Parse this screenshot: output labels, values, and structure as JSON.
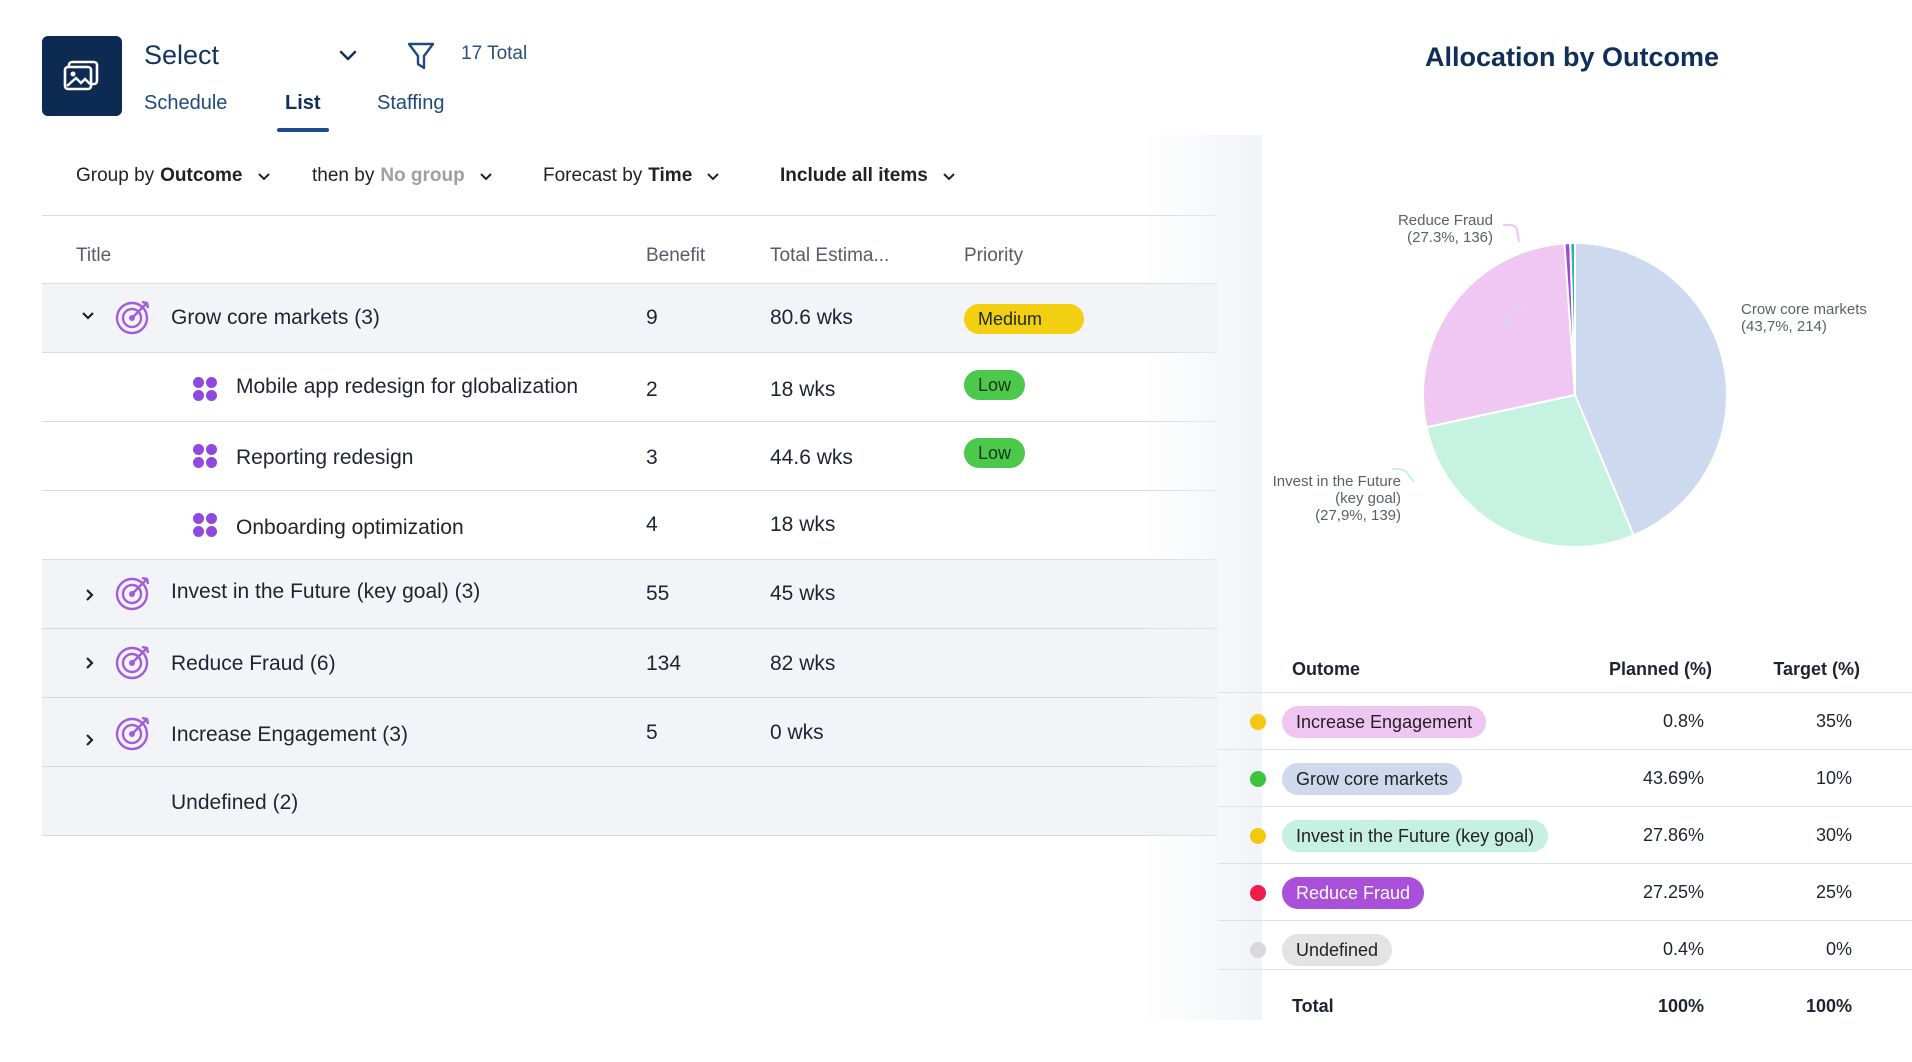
{
  "header": {
    "select_label": "Select",
    "total_label": "17 Total",
    "tabs": [
      {
        "label": "Schedule"
      },
      {
        "label": "List",
        "active": true
      },
      {
        "label": "Staffing"
      }
    ]
  },
  "toolbar": {
    "group_by_prefix": "Group by",
    "group_by_value": "Outcome",
    "then_by_prefix": "then by",
    "then_by_value": "No group",
    "forecast_prefix": "Forecast by",
    "forecast_value": "Time",
    "include_label": "Include all items"
  },
  "list": {
    "columns": [
      "Title",
      "Benefit",
      "Total Estima...",
      "Priority"
    ],
    "rows": [
      {
        "type": "group",
        "title": "Grow core markets (3)",
        "benefit": "9",
        "estimate": "80.6 wks",
        "priority": "Medium",
        "expanded": true
      },
      {
        "type": "item",
        "title": "Mobile app redesign for globalization",
        "benefit": "2",
        "estimate": "18 wks",
        "priority": "Low"
      },
      {
        "type": "item",
        "title": "Reporting redesign",
        "benefit": "3",
        "estimate": "44.6 wks",
        "priority": "Low"
      },
      {
        "type": "item",
        "title": "Onboarding optimization",
        "benefit": "4",
        "estimate": "18 wks",
        "priority": ""
      },
      {
        "type": "group",
        "title": "Invest in the Future (key goal) (3)",
        "benefit": "55",
        "estimate": "45 wks",
        "priority": ""
      },
      {
        "type": "group",
        "title": "Reduce Fraud (6)",
        "benefit": "134",
        "estimate": "82 wks",
        "priority": ""
      },
      {
        "type": "group",
        "title": "Increase Engagement (3)",
        "benefit": "5",
        "estimate": "0 wks",
        "priority": ""
      },
      {
        "type": "group",
        "title": "Undefined (2)",
        "benefit": "",
        "estimate": "",
        "priority": ""
      }
    ]
  },
  "allocation": {
    "title": "Allocation by Outcome",
    "pie_labels": {
      "grow_1": "Crow core markets",
      "grow_2": "(43,7%, 214)",
      "fraud_1": "Reduce Fraud",
      "fraud_2": "(27.3%, 136)",
      "invest_1": "Invest in the Future",
      "invest_2": "(key goal)",
      "invest_3": "(27,9%, 139)"
    },
    "table_headers": {
      "outcome": "Outome",
      "planned": "Planned (%)",
      "target": "Target (%)"
    },
    "table_rows": [
      {
        "name": "Increase Engagement",
        "planned": "0.8%",
        "target": "35%",
        "dot": "#f2c811",
        "tag_bg": "#efc6f2",
        "tag_fg": "#222222"
      },
      {
        "name": "Grow core markets",
        "planned": "43.69%",
        "target": "10%",
        "dot": "#3cc53c",
        "tag_bg": "#cfd9ee",
        "tag_fg": "#222222"
      },
      {
        "name": "Invest in the Future (key goal)",
        "planned": "27.86%",
        "target": "30%",
        "dot": "#f2c811",
        "tag_bg": "#c6f1e2",
        "tag_fg": "#222222"
      },
      {
        "name": "Reduce Fraud",
        "planned": "27.25%",
        "target": "25%",
        "dot": "#ee1c4a",
        "tag_bg": "#a94fd9",
        "tag_fg": "#ffffff"
      },
      {
        "name": "Undefined",
        "planned": "0.4%",
        "target": "0%",
        "dot": "#d8d8d8",
        "tag_bg": "#e3e3e3",
        "tag_fg": "#222222"
      }
    ],
    "total": {
      "label": "Total",
      "planned": "100%",
      "target": "100%"
    }
  },
  "chart_data": {
    "type": "pie",
    "title": "Allocation by Outcome",
    "slices": [
      {
        "label": "Crow core markets",
        "percent": 43.7,
        "value": 214,
        "color": "#cdd9ef"
      },
      {
        "label": "Invest in the Future (key goal)",
        "percent": 27.9,
        "value": 139,
        "color": "#c6f2e2"
      },
      {
        "label": "Reduce Fraud",
        "percent": 27.3,
        "value": 136,
        "color": "#f0c6f3"
      },
      {
        "label": "",
        "percent": 0.6,
        "value": null,
        "color": "#a347dc"
      },
      {
        "label": "",
        "percent": 0.5,
        "value": null,
        "color": "#2db8a6"
      }
    ]
  }
}
